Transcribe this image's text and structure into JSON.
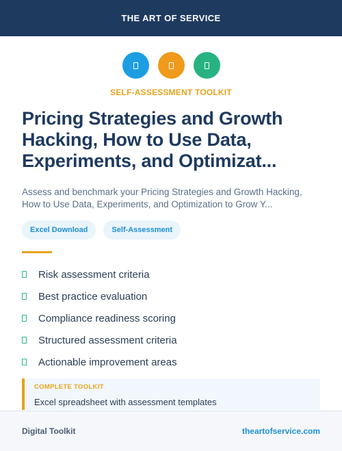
{
  "header": {
    "brand": "THE ART OF SERVICE"
  },
  "icons": [
    {
      "name": "document-icon",
      "color": "#1d9ee3"
    },
    {
      "name": "document-icon",
      "color": "#ef9a1b"
    },
    {
      "name": "document-icon",
      "color": "#27b381"
    }
  ],
  "kicker": "SELF-ASSESSMENT TOOLKIT",
  "title": "Pricing Strategies and Growth Hacking, How to Use Data, Experiments, and Optimizat...",
  "subtitle": "Assess and benchmark your Pricing Strategies and Growth Hacking, How to Use Data, Experiments, and Optimization to Grow Y...",
  "tags": [
    "Excel Download",
    "Self-Assessment"
  ],
  "features": [
    "Risk assessment criteria",
    "Best practice evaluation",
    "Compliance readiness scoring",
    "Structured assessment criteria",
    "Actionable improvement areas"
  ],
  "toolkit": {
    "kicker": "COMPLETE TOOLKIT",
    "text": "Excel spreadsheet with assessment templates"
  },
  "footer": {
    "left": "Digital Toolkit",
    "right": "theartofservice.com"
  },
  "colors": {
    "navy": "#1e3a5f",
    "accent": "#e8a21b",
    "blue": "#1d8fd6",
    "green": "#27b381"
  }
}
